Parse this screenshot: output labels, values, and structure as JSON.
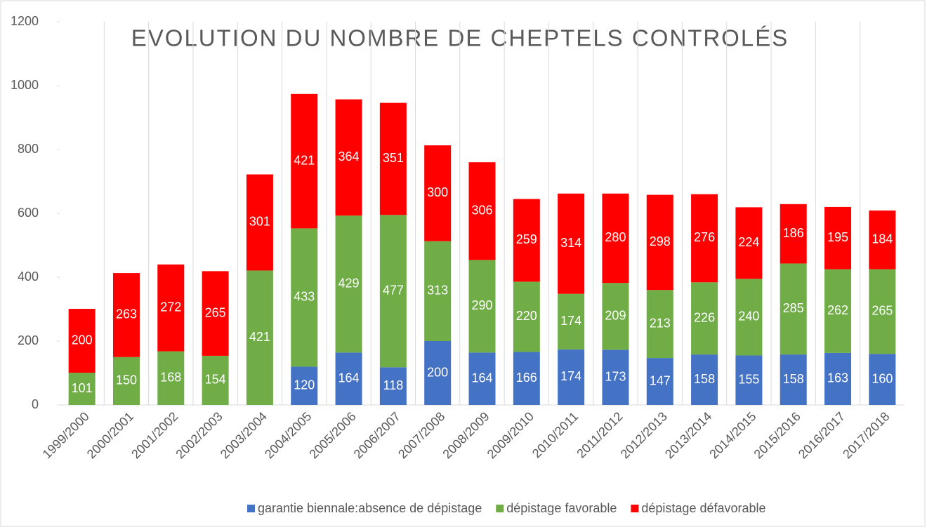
{
  "chart_data": {
    "type": "stacked_bar",
    "title": "EVOLUTION DU NOMBRE DE CHEPTELS CONTROLÉS",
    "categories": [
      "1999/2000",
      "2000/2001",
      "2001/2002",
      "2002/2003",
      "2003/2004",
      "2004/2005",
      "2005/2006",
      "2006/2007",
      "2007/2008",
      "2008/2009",
      "2009/2010",
      "2010/2011",
      "2011/2012",
      "2012/2013",
      "2013/2014",
      "2014/2015",
      "2015/2016",
      "2016/2017",
      "2017/2018"
    ],
    "series": [
      {
        "name": "garantie biennale:absence de dépistage",
        "color": "#4472c4",
        "values": [
          null,
          null,
          null,
          null,
          null,
          120,
          164,
          118,
          200,
          164,
          166,
          174,
          173,
          147,
          158,
          155,
          158,
          163,
          160
        ]
      },
      {
        "name": "dépistage favorable",
        "color": "#70ad47",
        "values": [
          101,
          150,
          168,
          154,
          421,
          433,
          429,
          477,
          313,
          290,
          220,
          174,
          209,
          213,
          226,
          240,
          285,
          262,
          265
        ]
      },
      {
        "name": "dépistage défavorable",
        "color": "#ff0000",
        "values": [
          200,
          263,
          272,
          265,
          301,
          421,
          364,
          351,
          300,
          306,
          259,
          314,
          280,
          298,
          276,
          224,
          186,
          195,
          184
        ]
      }
    ],
    "ylim": [
      0,
      1200
    ],
    "yticks": [
      0,
      200,
      400,
      600,
      800,
      1000,
      1200
    ],
    "legend": "bottom"
  }
}
